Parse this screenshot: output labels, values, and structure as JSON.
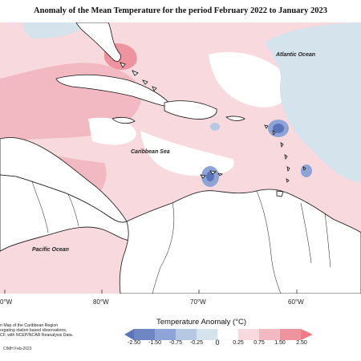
{
  "title": "Anomaly of the Mean Temperature for the period February 2022 to January 2023",
  "map": {
    "labels": {
      "atlantic": "Atlantic Ocean",
      "caribbean": "Caribbean Sea",
      "pacific": "Pacific Ocean"
    },
    "longitude_ticks": [
      "0°W",
      "80°W",
      "70°W",
      "60°W"
    ]
  },
  "footer": {
    "line1": "n Map of the Caribbean Region",
    "line2": "regating station based observations,",
    "line3": "CF, with NCEP/NCAR Reanalysis Data.",
    "credit": "CIMH Feb-2023"
  },
  "legend": {
    "title": "Temperature Anomaly (°C)",
    "ticks": [
      "-2.50",
      "-1.50",
      "-0.75",
      "-0.25",
      "0",
      "0.25",
      "0.75",
      "1.50",
      "2.50"
    ],
    "colors": {
      "very_cold": "#5b73b8",
      "cold": "#8ea3d6",
      "cool": "#b6c8e2",
      "slightly_cool": "#d4e3ec",
      "neutral": "#ffffff",
      "slightly_warm": "#f7d9de",
      "warm": "#f2b9c2",
      "hot": "#ee949f",
      "very_hot": "#f27a84",
      "land": "#ffffff",
      "coast": "#111111"
    }
  }
}
